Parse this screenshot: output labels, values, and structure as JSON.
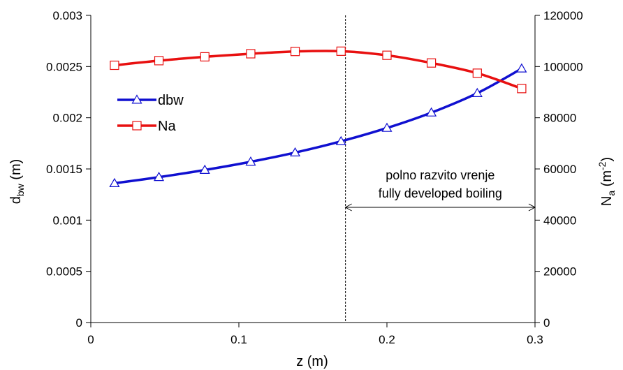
{
  "chart_data": {
    "type": "line",
    "title": "",
    "xlabel": "z (m)",
    "ylabel_left": {
      "main": "d",
      "sub": "bw",
      "unit": " (m)"
    },
    "ylabel_right": {
      "main": "N",
      "sub": "a",
      "unit_open": " (m",
      "sup": "-2",
      "unit_close": ")"
    },
    "xlim": [
      0,
      0.3
    ],
    "ylim_left": [
      0,
      0.003
    ],
    "ylim_right": [
      0,
      120000
    ],
    "x_ticks": [
      "0",
      "0.1",
      "0.2",
      "0.3"
    ],
    "y_left_ticks": [
      "0",
      "0.0005",
      "0.001",
      "0.0015",
      "0.002",
      "0.0025",
      "0.003"
    ],
    "y_right_ticks": [
      "0",
      "20000",
      "40000",
      "60000",
      "80000",
      "100000",
      "120000"
    ],
    "grid": false,
    "legend_position": "upper-left",
    "series": [
      {
        "name": "dbw",
        "axis": "left",
        "color": "#1010d0",
        "marker": "triangle",
        "x": [
          0.016,
          0.046,
          0.077,
          0.108,
          0.138,
          0.169,
          0.2,
          0.23,
          0.261,
          0.291
        ],
        "values": [
          0.00136,
          0.00142,
          0.00149,
          0.00157,
          0.00166,
          0.00177,
          0.0019,
          0.00205,
          0.00224,
          0.00248
        ]
      },
      {
        "name": "Na",
        "axis": "right",
        "color": "#e81010",
        "marker": "square",
        "x": [
          0.016,
          0.046,
          0.077,
          0.108,
          0.138,
          0.169,
          0.2,
          0.23,
          0.261,
          0.291
        ],
        "values": [
          100500,
          102300,
          103800,
          105000,
          105900,
          106000,
          104400,
          101400,
          97400,
          91400
        ]
      }
    ],
    "annotation": {
      "line1": "polno razvito vrenje",
      "line2": "fully developed boiling",
      "x_start": 0.172,
      "x_end": 0.3,
      "y_right": 45000,
      "divider_x": 0.172
    }
  }
}
